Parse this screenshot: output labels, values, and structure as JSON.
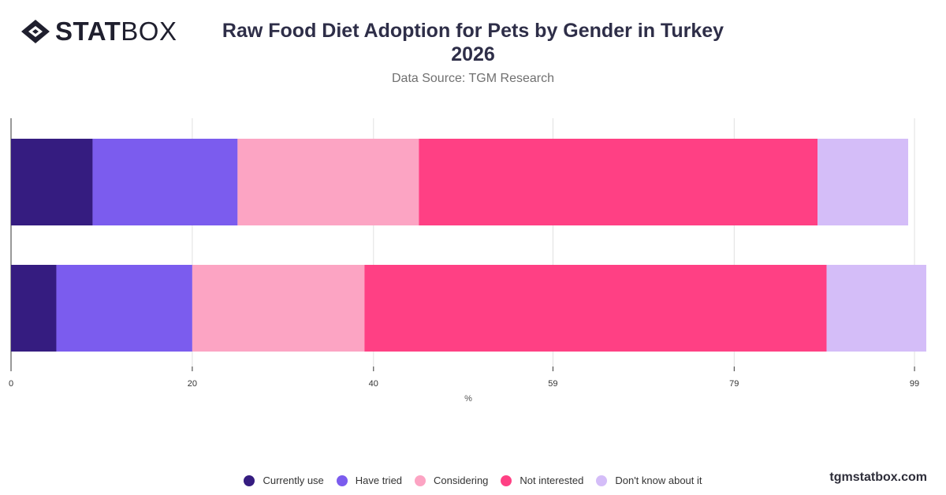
{
  "brand": {
    "logo_bold": "STAT",
    "logo_light": "BOX"
  },
  "header": {
    "title_line1": "Raw Food Diet Adoption for Pets by Gender in Turkey",
    "title_line2": "2026",
    "subtitle": "Data Source: TGM Research"
  },
  "footer": {
    "site": "tgmstatbox.com"
  },
  "colors": {
    "Currently use": "#351c80",
    "Have tried": "#7b5cee",
    "Considering": "#fca4c3",
    "Not interested": "#ff4084",
    "Don't know about it": "#d4bdf8"
  },
  "chart_data": {
    "type": "bar",
    "orientation": "horizontal",
    "stacked": true,
    "categories": [
      "",
      ""
    ],
    "series": [
      {
        "name": "Currently use",
        "values": [
          9,
          5
        ]
      },
      {
        "name": "Have tried",
        "values": [
          16,
          15
        ]
      },
      {
        "name": "Considering",
        "values": [
          20,
          19
        ]
      },
      {
        "name": "Not interested",
        "values": [
          44,
          51
        ]
      },
      {
        "name": "Don't know about it",
        "values": [
          10,
          11
        ]
      }
    ],
    "xlabel": "%",
    "ylabel": "",
    "xlim": [
      0,
      101
    ],
    "xticks": [
      "0",
      "20",
      "40",
      "59",
      "79",
      "99"
    ],
    "xtick_values": [
      0,
      20,
      40,
      59.8,
      79.8,
      99.7
    ],
    "grid": true,
    "legend_position": "bottom"
  }
}
